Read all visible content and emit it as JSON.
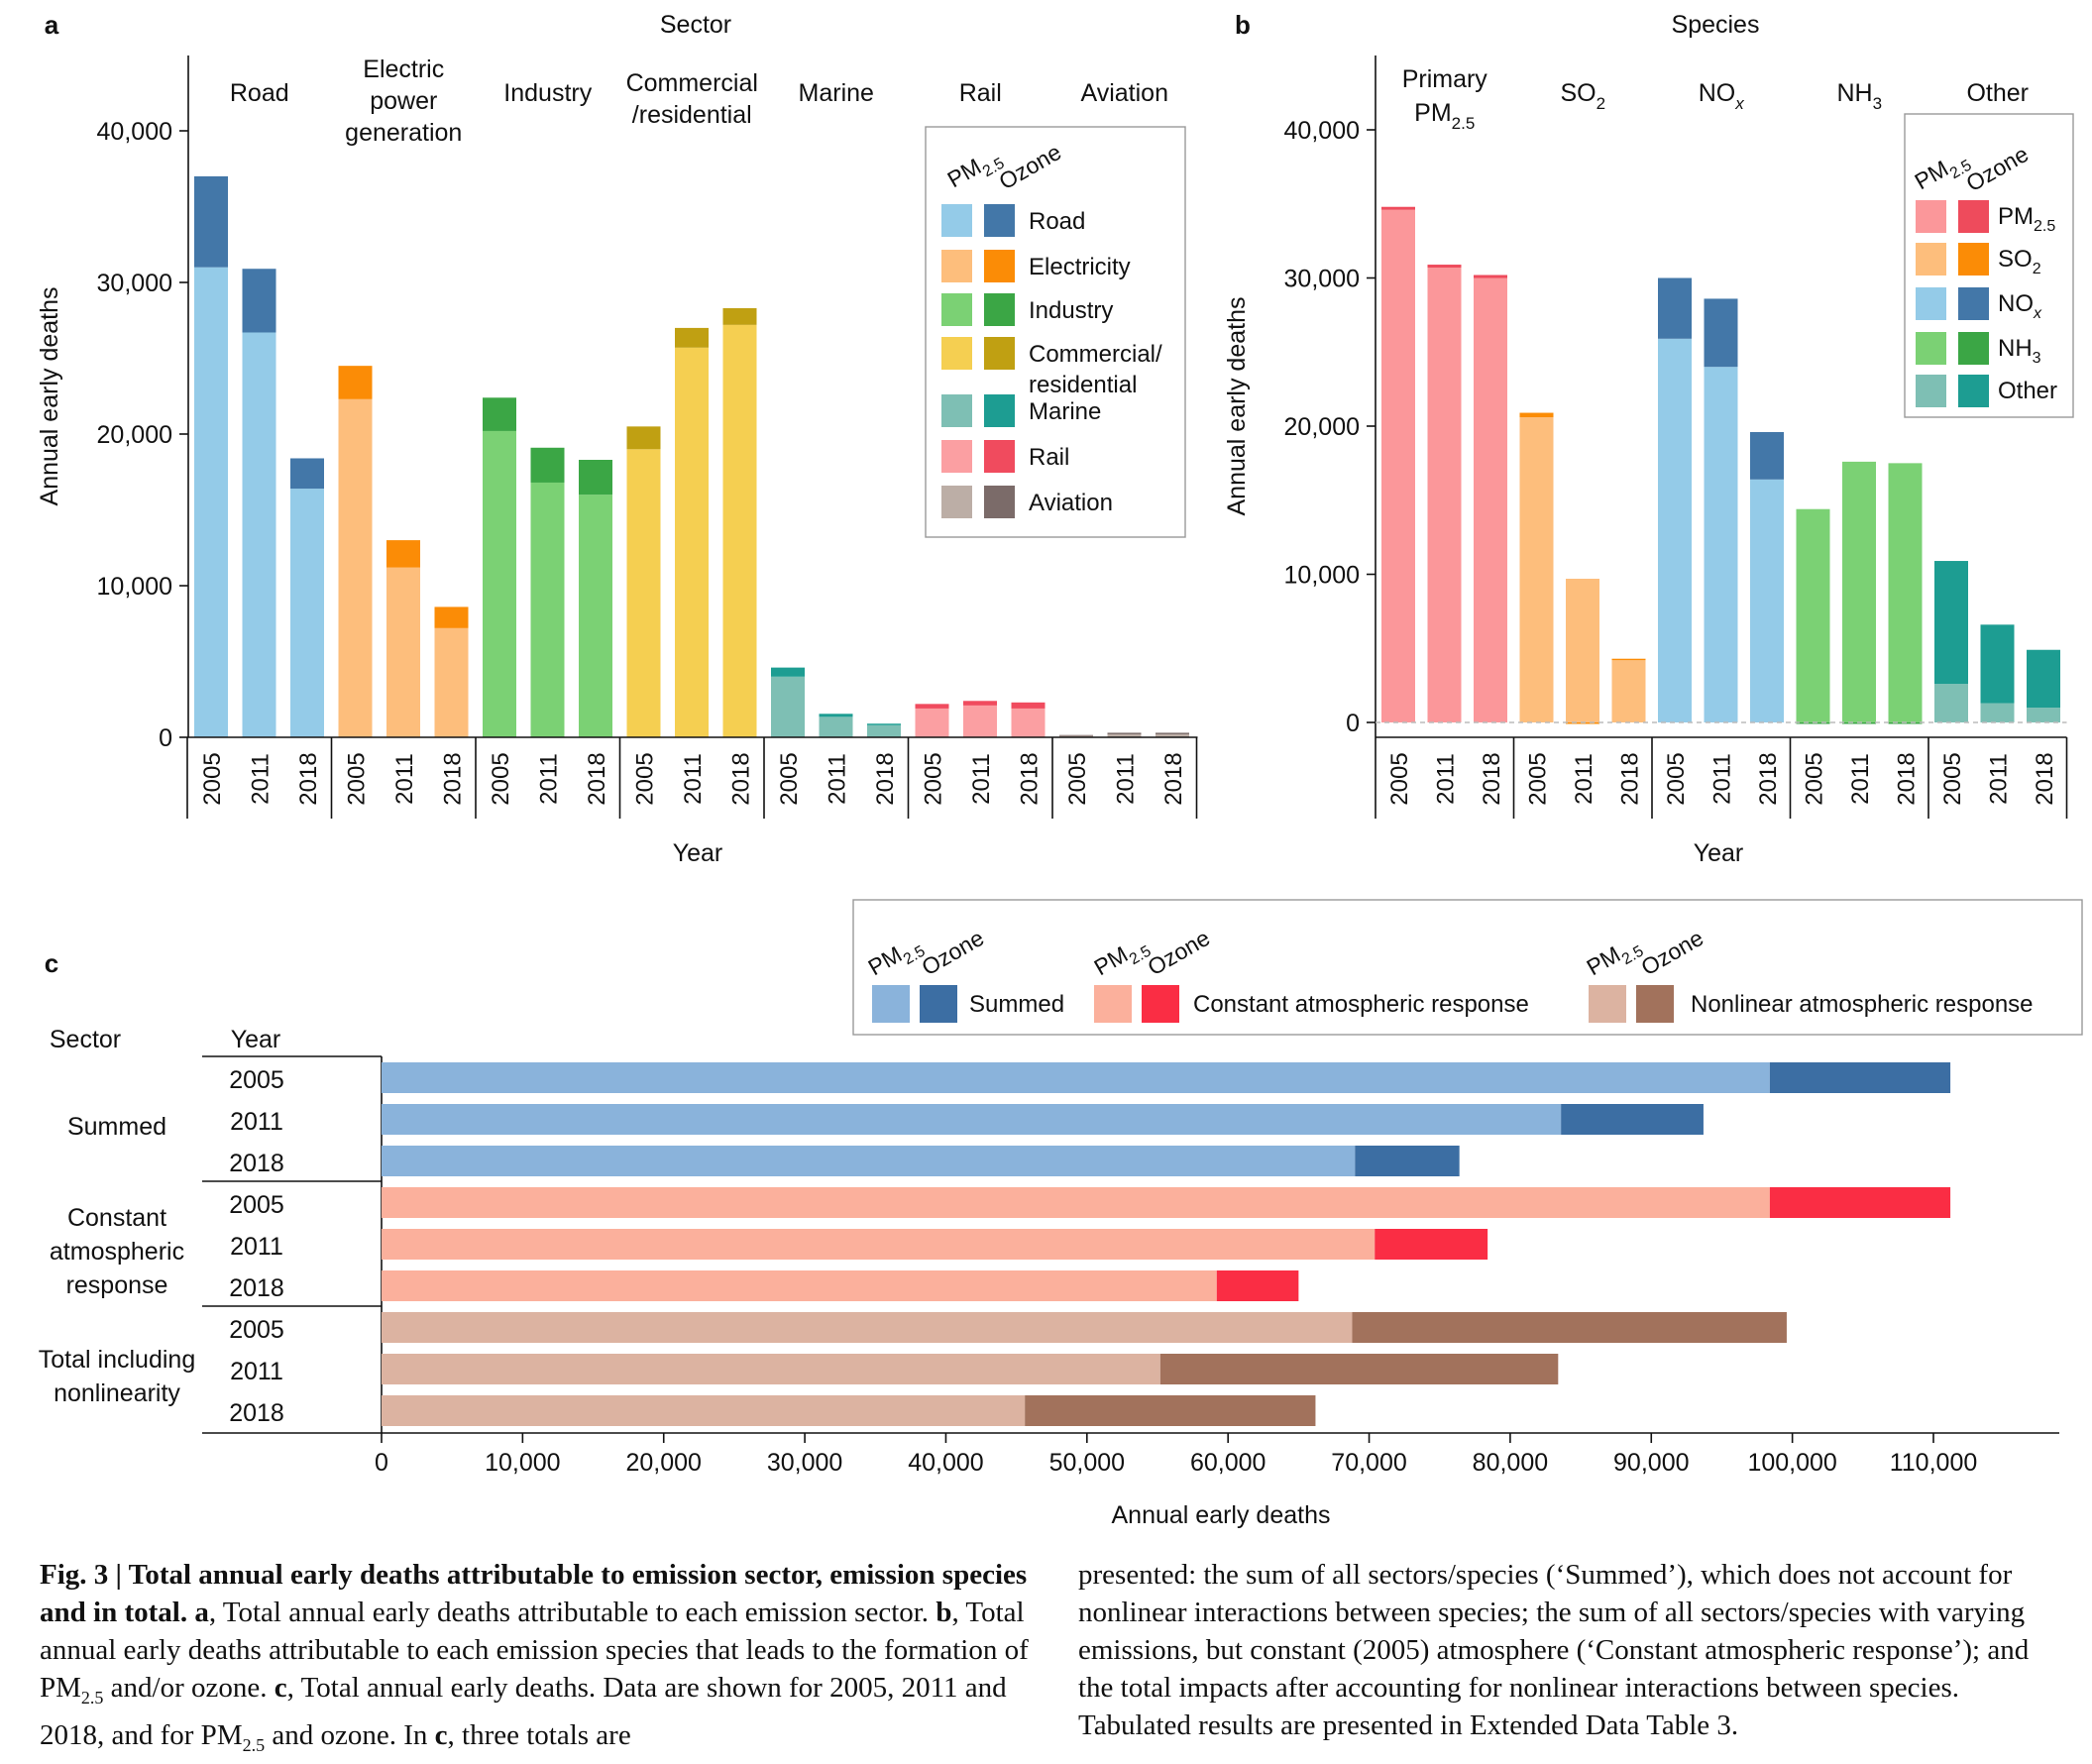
{
  "panels": {
    "a": {
      "letter": "a",
      "group_title": "Sector",
      "ylabel": "Annual early deaths",
      "xlabel": "Year",
      "ylim": [
        0,
        44000
      ],
      "yticks": [
        0,
        10000,
        20000,
        30000,
        40000
      ],
      "ytick_labels": [
        "0",
        "10,000",
        "20,000",
        "30,000",
        "40,000"
      ],
      "years": [
        "2005",
        "2011",
        "2018"
      ],
      "groups": [
        {
          "label": [
            "Road"
          ],
          "color_pm": "#94cbe8",
          "color_oz": "#4377a8",
          "pm": [
            31000,
            26700,
            16400
          ],
          "ozone": [
            6000,
            4200,
            2000
          ]
        },
        {
          "label": [
            "Electric",
            "power",
            "generation"
          ],
          "color_pm": "#fdbe7c",
          "color_oz": "#fb8c06",
          "pm": [
            22300,
            11200,
            7200
          ],
          "ozone": [
            2200,
            1800,
            1400
          ]
        },
        {
          "label": [
            "Industry"
          ],
          "color_pm": "#7bd174",
          "color_oz": "#3ba645",
          "pm": [
            20200,
            16800,
            16000
          ],
          "ozone": [
            2200,
            2300,
            2300
          ]
        },
        {
          "label": [
            "Commercial",
            "/residential"
          ],
          "color_pm": "#f5cf51",
          "color_oz": "#c0a012",
          "pm": [
            19000,
            25700,
            27200
          ],
          "ozone": [
            1500,
            1300,
            1100
          ]
        },
        {
          "label": [
            "Marine"
          ],
          "color_pm": "#7ebfb4",
          "color_oz": "#1d9d92",
          "pm": [
            4000,
            1350,
            800
          ],
          "ozone": [
            600,
            200,
            100
          ]
        },
        {
          "label": [
            "Rail"
          ],
          "color_pm": "#fb9fa2",
          "color_oz": "#f04b5e",
          "pm": [
            1900,
            2100,
            1900
          ],
          "ozone": [
            300,
            300,
            400
          ]
        },
        {
          "label": [
            "Aviation"
          ],
          "color_pm": "#bcaea6",
          "color_oz": "#7b6b69",
          "pm": [
            100,
            200,
            200
          ],
          "ozone": [
            50,
            100,
            100
          ]
        }
      ],
      "legend": {
        "header_pm": "PM",
        "header_pm_sub": "2.5",
        "header_oz": "Ozone",
        "items": [
          {
            "label": [
              "Road"
            ],
            "color_pm": "#94cbe8",
            "color_oz": "#4377a8"
          },
          {
            "label": [
              "Electricity"
            ],
            "color_pm": "#fdbe7c",
            "color_oz": "#fb8c06"
          },
          {
            "label": [
              "Industry"
            ],
            "color_pm": "#7bd174",
            "color_oz": "#3ba645"
          },
          {
            "label": [
              "Commercial/",
              "residential"
            ],
            "color_pm": "#f5cf51",
            "color_oz": "#c0a012"
          },
          {
            "label": [
              "Marine"
            ],
            "color_pm": "#7ebfb4",
            "color_oz": "#1d9d92"
          },
          {
            "label": [
              "Rail"
            ],
            "color_pm": "#fb9fa2",
            "color_oz": "#f04b5e"
          },
          {
            "label": [
              "Aviation"
            ],
            "color_pm": "#bcaea6",
            "color_oz": "#7b6b69"
          }
        ]
      }
    },
    "b": {
      "letter": "b",
      "group_title": "Species",
      "ylabel": "Annual early deaths",
      "xlabel": "Year",
      "ylim": [
        -1000,
        46000
      ],
      "yticks": [
        0,
        10000,
        20000,
        30000,
        40000
      ],
      "ytick_labels": [
        "0",
        "10,000",
        "20,000",
        "30,000",
        "40,000"
      ],
      "years": [
        "2005",
        "2011",
        "2018"
      ],
      "groups": [
        {
          "label": [
            [
              "Primary",
              ""
            ],
            [
              "PM",
              "2.5"
            ]
          ],
          "color_pm": "#fb979a",
          "color_oz": "#ee4b5c",
          "pm": [
            34600,
            30700,
            30000
          ],
          "ozone": [
            200,
            200,
            200
          ]
        },
        {
          "label": [
            [
              "SO",
              "2"
            ]
          ],
          "color_pm": "#fdbe7c",
          "color_oz": "#fb8c06",
          "pm": [
            20600,
            9700,
            4200
          ],
          "ozone": [
            300,
            -100,
            100
          ]
        },
        {
          "label": [
            [
              "NO",
              "x"
            ]
          ],
          "color_pm": "#94cbe8",
          "color_oz": "#4377a8",
          "pm": [
            25900,
            24000,
            16400
          ],
          "ozone": [
            4100,
            4600,
            3200
          ]
        },
        {
          "label": [
            [
              "NH",
              "3"
            ]
          ],
          "color_pm": "#7bd174",
          "color_oz": "#3ba645",
          "pm": [
            14400,
            17600,
            17500
          ],
          "ozone": [
            -100,
            -100,
            -100
          ]
        },
        {
          "label": [
            [
              "Other",
              ""
            ]
          ],
          "color_pm": "#7ebfb4",
          "color_oz": "#1d9d92",
          "pm": [
            2600,
            1300,
            1000
          ],
          "ozone": [
            8300,
            5300,
            3900
          ]
        }
      ],
      "legend": {
        "header_pm": "PM",
        "header_pm_sub": "2.5",
        "header_oz": "Ozone",
        "items": [
          {
            "label": "PM",
            "sub": "2.5",
            "color_pm": "#fb979a",
            "color_oz": "#ee4b5c"
          },
          {
            "label": "SO",
            "sub": "2",
            "color_pm": "#fdbe7c",
            "color_oz": "#fb8c06"
          },
          {
            "label": "NO",
            "sub": "x",
            "color_pm": "#94cbe8",
            "color_oz": "#4377a8"
          },
          {
            "label": "NH",
            "sub": "3",
            "color_pm": "#7bd174",
            "color_oz": "#3ba645"
          },
          {
            "label": "Other",
            "sub": "",
            "color_pm": "#7ebfb4",
            "color_oz": "#1d9d92"
          }
        ]
      }
    },
    "c": {
      "letter": "c",
      "col_sector": "Sector",
      "col_year": "Year",
      "xlabel": "Annual early deaths",
      "xlim": [
        0,
        120000
      ],
      "xticks": [
        0,
        10000,
        20000,
        30000,
        40000,
        50000,
        60000,
        70000,
        80000,
        90000,
        100000,
        110000
      ],
      "xtick_labels": [
        "0",
        "10,000",
        "20,000",
        "30,000",
        "40,000",
        "50,000",
        "60,000",
        "70,000",
        "80,000",
        "90,000",
        "100,000",
        "110,000"
      ],
      "groups": [
        {
          "label": [
            "Summed"
          ],
          "color_pm": "#8ab3db",
          "color_oz": "#3c6ea3",
          "rows": [
            {
              "year": "2005",
              "pm": 98400,
              "ozone": 12800
            },
            {
              "year": "2011",
              "pm": 83600,
              "ozone": 10100
            },
            {
              "year": "2018",
              "pm": 69000,
              "ozone": 7400
            }
          ]
        },
        {
          "label": [
            "Constant",
            "atmospheric",
            "response"
          ],
          "color_pm": "#fbb09c",
          "color_oz": "#fa2d44",
          "rows": [
            {
              "year": "2005",
              "pm": 98400,
              "ozone": 12800
            },
            {
              "year": "2011",
              "pm": 70400,
              "ozone": 8000
            },
            {
              "year": "2018",
              "pm": 59200,
              "ozone": 5800
            }
          ]
        },
        {
          "label": [
            "Total including",
            "nonlinearity"
          ],
          "color_pm": "#dcb3a1",
          "color_oz": "#a2725c",
          "rows": [
            {
              "year": "2005",
              "pm": 68800,
              "ozone": 30800
            },
            {
              "year": "2011",
              "pm": 55200,
              "ozone": 28200
            },
            {
              "year": "2018",
              "pm": 45600,
              "ozone": 20600
            }
          ]
        }
      ],
      "legend": {
        "header_pm": "PM",
        "header_pm_sub": "2.5",
        "header_oz": "Ozone",
        "items": [
          {
            "label": "Summed",
            "color_pm": "#8ab3db",
            "color_oz": "#3c6ea3"
          },
          {
            "label": "Constant atmospheric response",
            "color_pm": "#fbb09c",
            "color_oz": "#fa2d44"
          },
          {
            "label": "Nonlinear atmospheric response",
            "color_pm": "#dcb3a1",
            "color_oz": "#a2725c"
          }
        ]
      }
    }
  },
  "caption": {
    "left_lead": "Fig. 3 | Total annual early deaths attributable to emission sector, emission species and in total.",
    "left_body_1": " ",
    "left_a": "a",
    "left_body_2": ", Total annual early deaths attributable to each emission sector. ",
    "left_b": "b",
    "left_body_3": ", Total annual early deaths attributable to each emission species that leads to the formation of PM",
    "left_sub1": "2.5",
    "left_body_4": " and/or ozone. ",
    "left_c": "c",
    "left_body_5": ", Total annual early deaths. Data are shown for 2005, 2011 and 2018, and for PM",
    "left_sub2": "2.5",
    "left_body_6": " and ozone. In ",
    "left_c2": "c",
    "left_body_7": ", three totals are",
    "right": "presented: the sum of all sectors/species (‘Summed’), which does not account for nonlinear interactions between species; the sum of all sectors/species with varying emissions, but constant (2005) atmosphere (‘Constant atmospheric response’); and the total impacts after accounting for nonlinear interactions between species. Tabulated results are presented in Extended Data Table 3."
  }
}
